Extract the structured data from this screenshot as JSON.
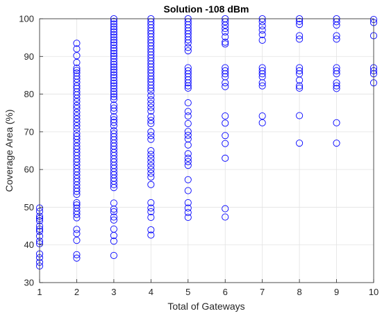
{
  "chart_data": {
    "type": "scatter",
    "title": "Solution -108 dBm",
    "xlabel": "Total of Gateways",
    "ylabel": "Coverage Area (%)",
    "xlim": [
      1,
      10
    ],
    "ylim": [
      30,
      100
    ],
    "xticks": [
      1,
      2,
      3,
      4,
      5,
      6,
      7,
      8,
      9,
      10
    ],
    "yticks": [
      30,
      40,
      50,
      60,
      70,
      80,
      90,
      100
    ],
    "grid": true,
    "marker": "open-circle",
    "marker_color": "#0000ff",
    "series": [
      {
        "points": [
          [
            1,
            49.8
          ],
          [
            1,
            48.9
          ],
          [
            1,
            47.6
          ],
          [
            1,
            47.0
          ],
          [
            1,
            46.4
          ],
          [
            1,
            45.0
          ],
          [
            1,
            44.2
          ],
          [
            1,
            43.6
          ],
          [
            1,
            42.3
          ],
          [
            1,
            41.0
          ],
          [
            1,
            40.3
          ],
          [
            1,
            37.6
          ],
          [
            1,
            36.6
          ],
          [
            1,
            35.4
          ],
          [
            1,
            34.4
          ],
          [
            2,
            93.5
          ],
          [
            2,
            92.0
          ],
          [
            2,
            90.2
          ],
          [
            2,
            88.4
          ],
          [
            2,
            86.9
          ],
          [
            2,
            86.3
          ],
          [
            2,
            85.6
          ],
          [
            2,
            84.8
          ],
          [
            2,
            84.0
          ],
          [
            2,
            83.1
          ],
          [
            2,
            82.2
          ],
          [
            2,
            81.5
          ],
          [
            2,
            80.6
          ],
          [
            2,
            79.8
          ],
          [
            2,
            78.9
          ],
          [
            2,
            78.0
          ],
          [
            2,
            77.0
          ],
          [
            2,
            76.2
          ],
          [
            2,
            75.2
          ],
          [
            2,
            74.3
          ],
          [
            2,
            73.4
          ],
          [
            2,
            72.5
          ],
          [
            2,
            71.6
          ],
          [
            2,
            70.7
          ],
          [
            2,
            69.6
          ],
          [
            2,
            68.8
          ],
          [
            2,
            68.0
          ],
          [
            2,
            67.1
          ],
          [
            2,
            66.2
          ],
          [
            2,
            65.4
          ],
          [
            2,
            64.5
          ],
          [
            2,
            63.7
          ],
          [
            2,
            62.8
          ],
          [
            2,
            62.0
          ],
          [
            2,
            61.1
          ],
          [
            2,
            60.2
          ],
          [
            2,
            59.4
          ],
          [
            2,
            58.5
          ],
          [
            2,
            57.6
          ],
          [
            2,
            56.8
          ],
          [
            2,
            55.9
          ],
          [
            2,
            55.0
          ],
          [
            2,
            54.2
          ],
          [
            2,
            53.4
          ],
          [
            2,
            51.2
          ],
          [
            2,
            50.6
          ],
          [
            2,
            49.8
          ],
          [
            2,
            48.9
          ],
          [
            2,
            48.1
          ],
          [
            2,
            47.2
          ],
          [
            2,
            44.1
          ],
          [
            2,
            43.0
          ],
          [
            2,
            41.2
          ],
          [
            2,
            37.4
          ],
          [
            2,
            36.5
          ],
          [
            3,
            100.0
          ],
          [
            3,
            99.3
          ],
          [
            3,
            98.6
          ],
          [
            3,
            97.9
          ],
          [
            3,
            97.2
          ],
          [
            3,
            96.5
          ],
          [
            3,
            95.8
          ],
          [
            3,
            95.1
          ],
          [
            3,
            94.4
          ],
          [
            3,
            93.7
          ],
          [
            3,
            93.0
          ],
          [
            3,
            92.2
          ],
          [
            3,
            91.5
          ],
          [
            3,
            90.8
          ],
          [
            3,
            90.1
          ],
          [
            3,
            89.4
          ],
          [
            3,
            88.6
          ],
          [
            3,
            87.9
          ],
          [
            3,
            87.2
          ],
          [
            3,
            86.5
          ],
          [
            3,
            85.8
          ],
          [
            3,
            85.1
          ],
          [
            3,
            84.4
          ],
          [
            3,
            83.6
          ],
          [
            3,
            82.9
          ],
          [
            3,
            82.2
          ],
          [
            3,
            81.5
          ],
          [
            3,
            80.7
          ],
          [
            3,
            80.0
          ],
          [
            3,
            79.3
          ],
          [
            3,
            78.6
          ],
          [
            3,
            77.1
          ],
          [
            3,
            76.3
          ],
          [
            3,
            75.5
          ],
          [
            3,
            74.0
          ],
          [
            3,
            73.2
          ],
          [
            3,
            72.5
          ],
          [
            3,
            71.6
          ],
          [
            3,
            70.3
          ],
          [
            3,
            69.5
          ],
          [
            3,
            68.7
          ],
          [
            3,
            67.9
          ],
          [
            3,
            67.0
          ],
          [
            3,
            66.2
          ],
          [
            3,
            65.4
          ],
          [
            3,
            64.5
          ],
          [
            3,
            63.7
          ],
          [
            3,
            62.8
          ],
          [
            3,
            62.0
          ],
          [
            3,
            61.1
          ],
          [
            3,
            60.3
          ],
          [
            3,
            59.4
          ],
          [
            3,
            58.6
          ],
          [
            3,
            57.7
          ],
          [
            3,
            56.9
          ],
          [
            3,
            56.0
          ],
          [
            3,
            55.2
          ],
          [
            3,
            51.1
          ],
          [
            3,
            49.5
          ],
          [
            3,
            48.8
          ],
          [
            3,
            47.4
          ],
          [
            3,
            46.6
          ],
          [
            3,
            44.2
          ],
          [
            3,
            42.5
          ],
          [
            3,
            41.0
          ],
          [
            3,
            37.2
          ],
          [
            4,
            100.0
          ],
          [
            4,
            99.2
          ],
          [
            4,
            98.4
          ],
          [
            4,
            97.6
          ],
          [
            4,
            96.8
          ],
          [
            4,
            96.0
          ],
          [
            4,
            95.2
          ],
          [
            4,
            94.4
          ],
          [
            4,
            93.6
          ],
          [
            4,
            92.8
          ],
          [
            4,
            92.0
          ],
          [
            4,
            91.2
          ],
          [
            4,
            90.4
          ],
          [
            4,
            89.6
          ],
          [
            4,
            88.8
          ],
          [
            4,
            88.0
          ],
          [
            4,
            87.2
          ],
          [
            4,
            86.4
          ],
          [
            4,
            85.6
          ],
          [
            4,
            84.8
          ],
          [
            4,
            84.0
          ],
          [
            4,
            83.2
          ],
          [
            4,
            82.4
          ],
          [
            4,
            81.6
          ],
          [
            4,
            80.8
          ],
          [
            4,
            79.6
          ],
          [
            4,
            78.5
          ],
          [
            4,
            77.5
          ],
          [
            4,
            76.5
          ],
          [
            4,
            75.5
          ],
          [
            4,
            74.0
          ],
          [
            4,
            73.0
          ],
          [
            4,
            72.2
          ],
          [
            4,
            70.0
          ],
          [
            4,
            69.0
          ],
          [
            4,
            68.0
          ],
          [
            4,
            65.0
          ],
          [
            4,
            64.0
          ],
          [
            4,
            63.0
          ],
          [
            4,
            62.0
          ],
          [
            4,
            61.0
          ],
          [
            4,
            60.0
          ],
          [
            4,
            59.0
          ],
          [
            4,
            58.0
          ],
          [
            4,
            56.0
          ],
          [
            4,
            51.2
          ],
          [
            4,
            49.8
          ],
          [
            4,
            48.8
          ],
          [
            4,
            47.3
          ],
          [
            4,
            44.0
          ],
          [
            4,
            42.6
          ],
          [
            5,
            100.0
          ],
          [
            5,
            99.2
          ],
          [
            5,
            98.4
          ],
          [
            5,
            97.6
          ],
          [
            5,
            96.8
          ],
          [
            5,
            96.0
          ],
          [
            5,
            95.2
          ],
          [
            5,
            94.4
          ],
          [
            5,
            93.6
          ],
          [
            5,
            92.4
          ],
          [
            5,
            91.5
          ],
          [
            5,
            87.0
          ],
          [
            5,
            86.2
          ],
          [
            5,
            85.4
          ],
          [
            5,
            84.6
          ],
          [
            5,
            83.8
          ],
          [
            5,
            83.0
          ],
          [
            5,
            82.2
          ],
          [
            5,
            81.6
          ],
          [
            5,
            77.7
          ],
          [
            5,
            75.4
          ],
          [
            5,
            74.2
          ],
          [
            5,
            72.2
          ],
          [
            5,
            70.1
          ],
          [
            5,
            69.1
          ],
          [
            5,
            68.1
          ],
          [
            5,
            66.5
          ],
          [
            5,
            64.2
          ],
          [
            5,
            63.0
          ],
          [
            5,
            62.1
          ],
          [
            5,
            61.1
          ],
          [
            5,
            57.3
          ],
          [
            5,
            54.4
          ],
          [
            5,
            51.2
          ],
          [
            5,
            49.8
          ],
          [
            5,
            48.6
          ],
          [
            5,
            47.3
          ],
          [
            6,
            100.0
          ],
          [
            6,
            99.2
          ],
          [
            6,
            98.3
          ],
          [
            6,
            97.4
          ],
          [
            6,
            96.5
          ],
          [
            6,
            95.2
          ],
          [
            6,
            93.8
          ],
          [
            6,
            93.3
          ],
          [
            6,
            87.0
          ],
          [
            6,
            86.2
          ],
          [
            6,
            85.4
          ],
          [
            6,
            84.6
          ],
          [
            6,
            83.0
          ],
          [
            6,
            82.0
          ],
          [
            6,
            74.2
          ],
          [
            6,
            72.3
          ],
          [
            6,
            69.0
          ],
          [
            6,
            66.9
          ],
          [
            6,
            63.0
          ],
          [
            6,
            49.6
          ],
          [
            6,
            47.4
          ],
          [
            7,
            100.0
          ],
          [
            7,
            99.2
          ],
          [
            7,
            98.1
          ],
          [
            7,
            97.0
          ],
          [
            7,
            95.8
          ],
          [
            7,
            94.3
          ],
          [
            7,
            87.0
          ],
          [
            7,
            86.2
          ],
          [
            7,
            85.4
          ],
          [
            7,
            84.6
          ],
          [
            7,
            83.0
          ],
          [
            7,
            82.2
          ],
          [
            7,
            74.2
          ],
          [
            7,
            72.4
          ],
          [
            8,
            100.0
          ],
          [
            8,
            99.3
          ],
          [
            8,
            98.5
          ],
          [
            8,
            95.5
          ],
          [
            8,
            94.6
          ],
          [
            8,
            87.0
          ],
          [
            8,
            86.2
          ],
          [
            8,
            85.4
          ],
          [
            8,
            83.7
          ],
          [
            8,
            82.2
          ],
          [
            8,
            81.6
          ],
          [
            8,
            74.3
          ],
          [
            8,
            67.0
          ],
          [
            9,
            100.0
          ],
          [
            9,
            99.2
          ],
          [
            9,
            98.3
          ],
          [
            9,
            95.5
          ],
          [
            9,
            94.6
          ],
          [
            9,
            87.0
          ],
          [
            9,
            86.2
          ],
          [
            9,
            85.4
          ],
          [
            9,
            83.0
          ],
          [
            9,
            82.2
          ],
          [
            9,
            81.5
          ],
          [
            9,
            72.4
          ],
          [
            9,
            67.0
          ],
          [
            10,
            99.8
          ],
          [
            10,
            99.0
          ],
          [
            10,
            95.5
          ],
          [
            10,
            87.0
          ],
          [
            10,
            86.2
          ],
          [
            10,
            85.4
          ],
          [
            10,
            83.0
          ]
        ]
      }
    ]
  }
}
